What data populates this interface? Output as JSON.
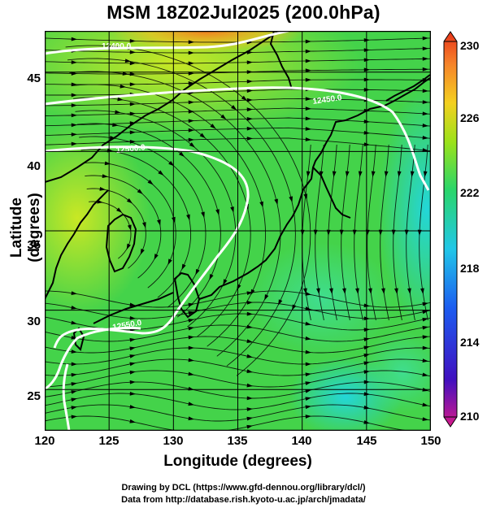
{
  "title": "MSM 18Z02Jul2025 (200.0hPa)",
  "map": {
    "xlabel": "Longitude (degrees)",
    "ylabel": "Latitude  (degrees)",
    "lon_range": [
      120,
      150
    ],
    "lat_range": [
      22.4,
      47.6
    ],
    "x_ticks": [
      "120",
      "125",
      "130",
      "135",
      "140",
      "145",
      "150"
    ],
    "y_ticks": [
      "25",
      "30",
      "35",
      "40",
      "45"
    ],
    "contour_labels": [
      "12400.0",
      "12450.0",
      "12500.0",
      "12550.0"
    ]
  },
  "colorbar": {
    "ticks": [
      "230",
      "226",
      "222",
      "218",
      "214",
      "210"
    ],
    "colors": [
      "#d81a8a",
      "#4010c0",
      "#1c5cf0",
      "#21c7e8",
      "#2ad66a",
      "#9be21a",
      "#f4d020",
      "#f6822a",
      "#e8341a"
    ]
  },
  "credits": {
    "line1": "Drawing by DCL (https://www.gfd-dennou.org/library/dcl/)",
    "line2": "Data from http://database.rish.kyoto-u.ac.jp/arch/jmadata/"
  }
}
